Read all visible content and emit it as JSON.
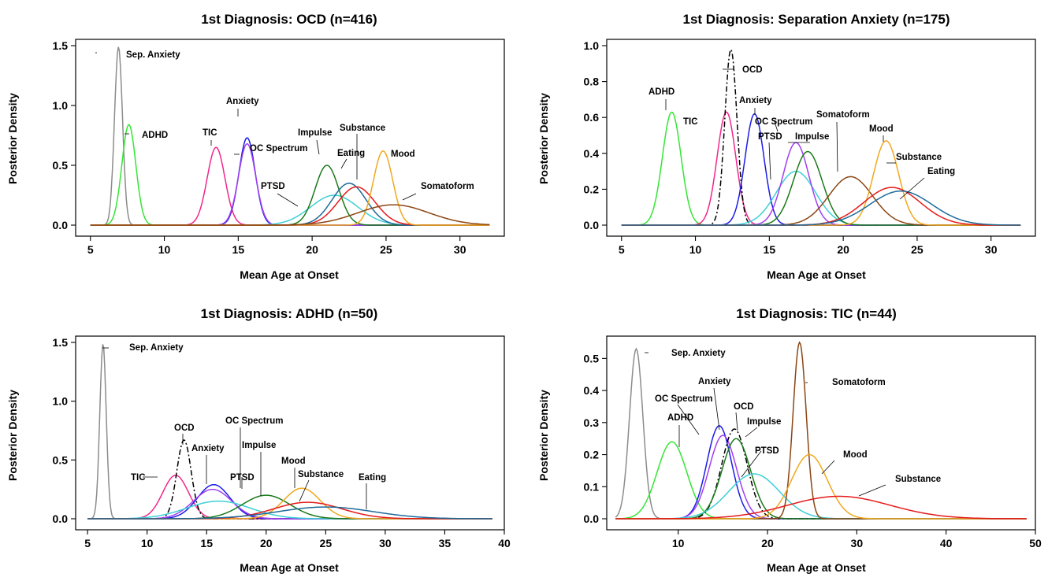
{
  "chart_data": [
    {
      "type": "line",
      "title": "1st Diagnosis: OCD (n=416)",
      "xlabel": "Mean Age at Onset",
      "ylabel": "Posterior Density",
      "xlim": [
        4,
        33
      ],
      "ylim": [
        0,
        1.5
      ],
      "xticks": [
        "5",
        "10",
        "15",
        "20",
        "25",
        "30"
      ],
      "yticks": [
        "0.0",
        "0.5",
        "1.0",
        "1.5"
      ],
      "series": [
        {
          "name": "Sep. Anxiety",
          "color": "#8c8c8c",
          "dash": "solid",
          "mean": 6.9,
          "peak": 1.49
        },
        {
          "name": "ADHD",
          "color": "#33e633",
          "dash": "solid",
          "mean": 7.6,
          "peak": 0.84
        },
        {
          "name": "TIC",
          "color": "#f0288c",
          "dash": "solid",
          "mean": 13.5,
          "peak": 0.65
        },
        {
          "name": "Anxiety",
          "color": "#1c1ce6",
          "dash": "solid",
          "mean": 15.6,
          "peak": 0.73
        },
        {
          "name": "OC Spectrum",
          "color": "#a040f0",
          "dash": "solid",
          "mean": 15.6,
          "peak": 0.68
        },
        {
          "name": "PTSD",
          "color": "#3ccfd6",
          "dash": "solid",
          "mean": 21.5,
          "peak": 0.25
        },
        {
          "name": "Impulse",
          "color": "#1a7a1a",
          "dash": "solid",
          "mean": 21.0,
          "peak": 0.5
        },
        {
          "name": "Eating",
          "color": "#1f6a99",
          "dash": "solid",
          "mean": 22.5,
          "peak": 0.35
        },
        {
          "name": "Substance",
          "color": "#e61a1a",
          "dash": "solid",
          "mean": 23.0,
          "peak": 0.32
        },
        {
          "name": "Mood",
          "color": "#f0a820",
          "dash": "solid",
          "mean": 24.8,
          "peak": 0.62
        },
        {
          "name": "Somatoform",
          "color": "#8b4513",
          "dash": "solid",
          "mean": 25.5,
          "peak": 0.17
        }
      ]
    },
    {
      "type": "line",
      "title": "1st Diagnosis: Separation Anxiety (n=175)",
      "xlabel": "Mean Age at Onset",
      "ylabel": "Posterior Density",
      "xlim": [
        4,
        33
      ],
      "ylim": [
        0,
        1.0
      ],
      "xticks": [
        "5",
        "10",
        "15",
        "20",
        "25",
        "30"
      ],
      "yticks": [
        "0.0",
        "0.2",
        "0.4",
        "0.6",
        "0.8",
        "1.0"
      ],
      "series": [
        {
          "name": "ADHD",
          "color": "#33e633",
          "dash": "solid",
          "mean": 8.4,
          "peak": 0.63
        },
        {
          "name": "TIC",
          "color": "#f0288c",
          "dash": "solid",
          "mean": 12.1,
          "peak": 0.63
        },
        {
          "name": "OCD",
          "color": "#000000",
          "dash": "dashdot",
          "mean": 12.4,
          "peak": 0.98
        },
        {
          "name": "Anxiety",
          "color": "#1c1ce6",
          "dash": "solid",
          "mean": 14.0,
          "peak": 0.62
        },
        {
          "name": "PTSD",
          "color": "#3ccfd6",
          "dash": "solid",
          "mean": 16.8,
          "peak": 0.3
        },
        {
          "name": "OC Spectrum",
          "color": "#a040f0",
          "dash": "solid",
          "mean": 16.8,
          "peak": 0.46
        },
        {
          "name": "Impulse",
          "color": "#1a7a1a",
          "dash": "solid",
          "mean": 17.6,
          "peak": 0.41
        },
        {
          "name": "Somatoform",
          "color": "#8b4513",
          "dash": "solid",
          "mean": 20.5,
          "peak": 0.27
        },
        {
          "name": "Mood",
          "color": "#f0a820",
          "dash": "solid",
          "mean": 22.9,
          "peak": 0.47
        },
        {
          "name": "Substance",
          "color": "#e61a1a",
          "dash": "solid",
          "mean": 23.3,
          "peak": 0.21
        },
        {
          "name": "Eating",
          "color": "#1f6a99",
          "dash": "solid",
          "mean": 23.9,
          "peak": 0.19
        }
      ]
    },
    {
      "type": "line",
      "title": "1st Diagnosis: ADHD (n=50)",
      "xlabel": "Mean Age at Onset",
      "ylabel": "Posterior Density",
      "xlim": [
        4,
        40
      ],
      "ylim": [
        0,
        1.5
      ],
      "xticks": [
        "5",
        "10",
        "15",
        "20",
        "25",
        "30",
        "35",
        "40"
      ],
      "yticks": [
        "0.0",
        "0.5",
        "1.0",
        "1.5"
      ],
      "series": [
        {
          "name": "Sep. Anxiety",
          "color": "#8c8c8c",
          "dash": "solid",
          "mean": 6.3,
          "peak": 1.49
        },
        {
          "name": "TIC",
          "color": "#f0288c",
          "dash": "solid",
          "mean": 12.4,
          "peak": 0.37
        },
        {
          "name": "OCD",
          "color": "#000000",
          "dash": "dashdot",
          "mean": 13.1,
          "peak": 0.67
        },
        {
          "name": "Anxiety",
          "color": "#1c1ce6",
          "dash": "solid",
          "mean": 15.6,
          "peak": 0.29
        },
        {
          "name": "OC Spectrum",
          "color": "#a040f0",
          "dash": "solid",
          "mean": 15.5,
          "peak": 0.25
        },
        {
          "name": "PTSD",
          "color": "#3ccfd6",
          "dash": "solid",
          "mean": 16.0,
          "peak": 0.15
        },
        {
          "name": "Impulse",
          "color": "#1a7a1a",
          "dash": "solid",
          "mean": 20.0,
          "peak": 0.2
        },
        {
          "name": "Mood",
          "color": "#f0a820",
          "dash": "solid",
          "mean": 23.0,
          "peak": 0.26
        },
        {
          "name": "Substance",
          "color": "#e61a1a",
          "dash": "solid",
          "mean": 23.5,
          "peak": 0.14
        },
        {
          "name": "Eating",
          "color": "#1f6a99",
          "dash": "solid",
          "mean": 25.0,
          "peak": 0.1
        }
      ]
    },
    {
      "type": "line",
      "title": "1st Diagnosis: TIC (n=44)",
      "xlabel": "Mean Age at Onset",
      "ylabel": "Posterior Density",
      "xlim": [
        2,
        50
      ],
      "ylim": [
        0,
        0.55
      ],
      "xticks": [
        "10",
        "20",
        "30",
        "40",
        "50"
      ],
      "yticks": [
        "0.0",
        "0.1",
        "0.2",
        "0.3",
        "0.4",
        "0.5"
      ],
      "series": [
        {
          "name": "Sep. Anxiety",
          "color": "#8c8c8c",
          "dash": "solid",
          "mean": 5.3,
          "peak": 0.53
        },
        {
          "name": "ADHD",
          "color": "#33e633",
          "dash": "solid",
          "mean": 9.3,
          "peak": 0.24
        },
        {
          "name": "Anxiety",
          "color": "#1c1ce6",
          "dash": "solid",
          "mean": 14.6,
          "peak": 0.29
        },
        {
          "name": "OC Spectrum",
          "color": "#a040f0",
          "dash": "solid",
          "mean": 15.0,
          "peak": 0.26
        },
        {
          "name": "OCD",
          "color": "#000000",
          "dash": "dashdot",
          "mean": 16.3,
          "peak": 0.28
        },
        {
          "name": "Impulse",
          "color": "#1a7a1a",
          "dash": "solid",
          "mean": 16.5,
          "peak": 0.25
        },
        {
          "name": "PTSD",
          "color": "#3ccfd6",
          "dash": "solid",
          "mean": 18.5,
          "peak": 0.14
        },
        {
          "name": "Somatoform",
          "color": "#8b4513",
          "dash": "solid",
          "mean": 23.6,
          "peak": 0.55
        },
        {
          "name": "Mood",
          "color": "#f0a820",
          "dash": "solid",
          "mean": 24.7,
          "peak": 0.2
        },
        {
          "name": "Substance",
          "color": "#e61a1a",
          "dash": "solid",
          "mean": 28.0,
          "peak": 0.07
        }
      ]
    }
  ]
}
